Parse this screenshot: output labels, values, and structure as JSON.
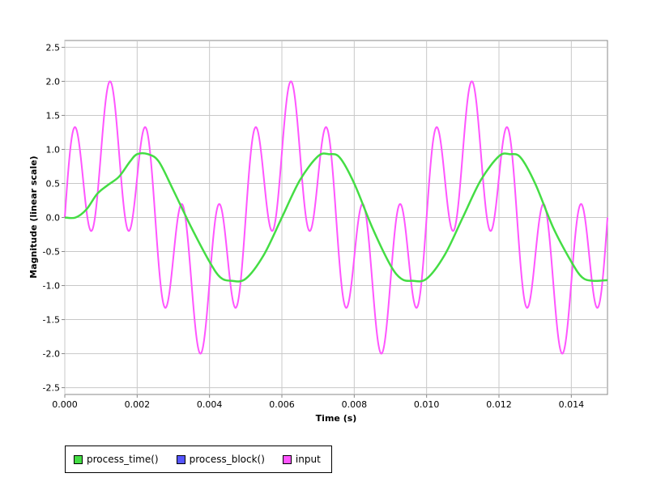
{
  "chart_data": {
    "type": "line",
    "title": "",
    "xlabel": "Time (s)",
    "ylabel": "Magnitude (linear scale)",
    "xlim": [
      0,
      0.015
    ],
    "ylim": [
      -2.6,
      2.6
    ],
    "grid": true,
    "legend_position": "bottom-left",
    "x_ticks": [
      "0.000",
      "0.002",
      "0.004",
      "0.006",
      "0.008",
      "0.010",
      "0.012",
      "0.014"
    ],
    "x_tick_values": [
      0,
      0.002,
      0.004,
      0.006,
      0.008,
      0.01,
      0.012,
      0.014
    ],
    "y_ticks": [
      "2.5",
      "2.0",
      "1.5",
      "1.0",
      "0.5",
      "0.0",
      "-0.5",
      "-1.0",
      "-1.5",
      "-2.0",
      "-2.5"
    ],
    "y_tick_values": [
      2.5,
      2.0,
      1.5,
      1.0,
      0.5,
      0.0,
      -0.5,
      -1.0,
      -1.5,
      -2.0,
      -2.5
    ],
    "series": [
      {
        "name": "process_time()",
        "color": "#44dd44",
        "x": [
          0,
          0.0003,
          0.0006,
          0.0009,
          0.0012,
          0.0015,
          0.0018,
          0.002,
          0.0023,
          0.0026,
          0.003,
          0.0035,
          0.004,
          0.0043,
          0.0046,
          0.005,
          0.0055,
          0.006,
          0.0065,
          0.007,
          0.0073,
          0.0076,
          0.008,
          0.0085,
          0.009,
          0.0093,
          0.0096,
          0.01,
          0.0105,
          0.011,
          0.0115,
          0.012,
          0.0123,
          0.0126,
          0.013,
          0.0135,
          0.014,
          0.0143,
          0.0146,
          0.015
        ],
        "y": [
          0.0,
          0.0,
          0.12,
          0.35,
          0.48,
          0.6,
          0.82,
          0.93,
          0.93,
          0.82,
          0.4,
          -0.15,
          -0.65,
          -0.88,
          -0.93,
          -0.9,
          -0.55,
          0.0,
          0.55,
          0.9,
          0.93,
          0.88,
          0.5,
          -0.15,
          -0.7,
          -0.9,
          -0.93,
          -0.9,
          -0.55,
          0.0,
          0.55,
          0.9,
          0.93,
          0.88,
          0.5,
          -0.15,
          -0.65,
          -0.88,
          -0.93,
          -0.92
        ]
      },
      {
        "name": "process_block()",
        "color": "#5555ff",
        "x": [],
        "y": []
      },
      {
        "name": "input",
        "color": "#ff55ff",
        "function": "sin(2*pi*200*t) + sin(2*pi*1000*t)",
        "x_range": [
          0,
          0.015
        ],
        "samples": 1500
      }
    ]
  }
}
